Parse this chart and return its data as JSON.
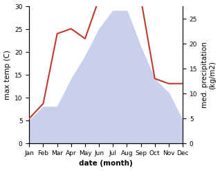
{
  "months": [
    "Jan",
    "Feb",
    "Mar",
    "Apr",
    "May",
    "Jun",
    "Jul",
    "Aug",
    "Sep",
    "Oct",
    "Nov",
    "Dec"
  ],
  "max_temp": [
    5,
    8,
    8,
    14,
    19,
    25,
    29,
    29,
    21,
    14,
    11,
    5
  ],
  "precipitation": [
    5,
    8,
    22,
    23,
    21,
    29,
    28,
    29,
    29,
    13,
    12,
    12
  ],
  "temp_fill_color": "#c8d0eb",
  "precip_color": "#c0392b",
  "ylabel_left": "max temp (C)",
  "ylabel_right": "med. precipitation\n(kg/m2)",
  "xlabel": "date (month)",
  "ylim_left": [
    0,
    30
  ],
  "ylim_right": [
    0,
    27.5
  ],
  "yticks_left": [
    0,
    5,
    10,
    15,
    20,
    25,
    30
  ],
  "yticks_right": [
    0,
    5,
    10,
    15,
    20,
    25
  ],
  "bg_color": "#ffffff",
  "label_fontsize": 7.5,
  "tick_fontsize": 6.5
}
